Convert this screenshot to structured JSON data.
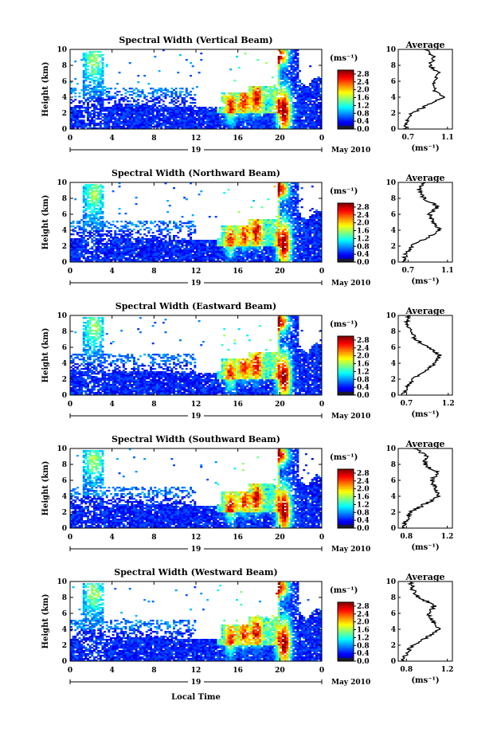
{
  "figure": {
    "xlabel": "Local Time",
    "date_label": "May 2010",
    "day_label": "19",
    "avg_title": "Average",
    "ylabel": "Height (km)",
    "units": "(ms⁻¹)"
  },
  "chart_data": [
    {
      "type": "heatmap",
      "title": "Spectral Width (Vertical Beam)",
      "xlabel": "Local Time",
      "ylabel": "Height (km)",
      "x_ticks": [
        "0",
        "4",
        "8",
        "12",
        "16",
        "20",
        "0"
      ],
      "x_range_hours": [
        0,
        24
      ],
      "y_ticks": [
        "0",
        "2",
        "4",
        "6",
        "8",
        "10"
      ],
      "y_range_km": [
        0,
        10
      ],
      "colorbar": {
        "label": "(ms⁻¹)",
        "ticks": [
          "0.0",
          "0.4",
          "0.8",
          "1.2",
          "1.6",
          "2.0",
          "2.4",
          "2.8"
        ],
        "range": [
          0,
          3.0
        ]
      },
      "average": {
        "title": "Average",
        "xlabel": "(ms⁻¹)",
        "x_ticks": [
          "0.7",
          "1.1"
        ],
        "xlim": [
          0.6,
          1.15
        ],
        "height_km": [
          0,
          1,
          2,
          3,
          4,
          5,
          6,
          7,
          8,
          9,
          10
        ],
        "values": [
          0.66,
          0.7,
          0.74,
          0.9,
          1.05,
          0.96,
          0.95,
          1.02,
          0.92,
          0.97,
          0.88
        ]
      }
    },
    {
      "type": "heatmap",
      "title": "Spectral Width (Northward Beam)",
      "xlabel": "Local Time",
      "ylabel": "Height (km)",
      "x_ticks": [
        "0",
        "4",
        "8",
        "12",
        "16",
        "20",
        "0"
      ],
      "x_range_hours": [
        0,
        24
      ],
      "y_ticks": [
        "0",
        "2",
        "4",
        "6",
        "8",
        "10"
      ],
      "y_range_km": [
        0,
        10
      ],
      "colorbar": {
        "label": "(ms⁻¹)",
        "ticks": [
          "0.0",
          "0.4",
          "0.8",
          "1.2",
          "1.6",
          "2.0",
          "2.4",
          "2.8"
        ],
        "range": [
          0,
          3.0
        ]
      },
      "average": {
        "title": "Average",
        "xlabel": "(ms⁻¹)",
        "x_ticks": [
          "0.7",
          "1.1"
        ],
        "xlim": [
          0.6,
          1.15
        ],
        "height_km": [
          0,
          1,
          2,
          3,
          4,
          5,
          6,
          7,
          8,
          9,
          10
        ],
        "values": [
          0.66,
          0.68,
          0.73,
          0.88,
          1.03,
          0.95,
          0.92,
          1.0,
          0.86,
          0.82,
          0.86
        ]
      }
    },
    {
      "type": "heatmap",
      "title": "Spectral Width (Eastward Beam)",
      "xlabel": "Local Time",
      "ylabel": "Height (km)",
      "x_ticks": [
        "0",
        "4",
        "8",
        "12",
        "16",
        "20",
        "0"
      ],
      "x_range_hours": [
        0,
        24
      ],
      "y_ticks": [
        "0",
        "2",
        "4",
        "6",
        "8",
        "10"
      ],
      "y_range_km": [
        0,
        10
      ],
      "colorbar": {
        "label": "(ms⁻¹)",
        "ticks": [
          "0.0",
          "0.4",
          "0.8",
          "1.2",
          "1.6",
          "2.0",
          "2.4",
          "2.8"
        ],
        "range": [
          0,
          3.0
        ]
      },
      "average": {
        "title": "Average",
        "xlabel": "(ms⁻¹)",
        "x_ticks": [
          "0.7",
          "1.2"
        ],
        "xlim": [
          0.6,
          1.25
        ],
        "height_km": [
          0,
          1,
          2,
          3,
          4,
          5,
          6,
          7,
          8,
          9,
          10
        ],
        "values": [
          0.66,
          0.7,
          0.78,
          0.92,
          1.05,
          1.1,
          0.96,
          0.8,
          0.76,
          0.7,
          0.72
        ]
      }
    },
    {
      "type": "heatmap",
      "title": "Spectral Width (Southward Beam)",
      "xlabel": "Local Time",
      "ylabel": "Height (km)",
      "x_ticks": [
        "0",
        "4",
        "8",
        "12",
        "16",
        "20",
        "0"
      ],
      "x_range_hours": [
        0,
        24
      ],
      "y_ticks": [
        "0",
        "2",
        "4",
        "6",
        "8",
        "10"
      ],
      "y_range_km": [
        0,
        10
      ],
      "colorbar": {
        "label": "(ms⁻¹)",
        "ticks": [
          "0.0",
          "0.4",
          "0.8",
          "1.2",
          "1.6",
          "2.0",
          "2.4",
          "2.8"
        ],
        "range": [
          0,
          3.0
        ]
      },
      "average": {
        "title": "Average",
        "xlabel": "(ms⁻¹)",
        "x_ticks": [
          "0.8",
          "1.2"
        ],
        "xlim": [
          0.72,
          1.25
        ],
        "height_km": [
          0,
          1,
          2,
          3,
          4,
          5,
          6,
          7,
          8,
          9,
          10
        ],
        "values": [
          0.76,
          0.8,
          0.84,
          0.98,
          1.12,
          1.08,
          1.05,
          1.1,
          0.98,
          1.0,
          0.88
        ]
      }
    },
    {
      "type": "heatmap",
      "title": "Spectral Width (Westward Beam)",
      "xlabel": "Local Time",
      "ylabel": "Height (km)",
      "x_ticks": [
        "0",
        "4",
        "8",
        "12",
        "16",
        "20",
        "0"
      ],
      "x_range_hours": [
        0,
        24
      ],
      "y_ticks": [
        "0",
        "2",
        "4",
        "6",
        "8",
        "10"
      ],
      "y_range_km": [
        0,
        10
      ],
      "colorbar": {
        "label": "(ms⁻¹)",
        "ticks": [
          "0.0",
          "0.4",
          "0.8",
          "1.2",
          "1.6",
          "2.0",
          "2.4",
          "2.8"
        ],
        "range": [
          0,
          3.0
        ]
      },
      "average": {
        "title": "Average",
        "xlabel": "(ms⁻¹)",
        "x_ticks": [
          "0.8",
          "1.2"
        ],
        "xlim": [
          0.72,
          1.25
        ],
        "height_km": [
          0,
          1,
          2,
          3,
          4,
          5,
          6,
          7,
          8,
          9,
          10
        ],
        "values": [
          0.76,
          0.8,
          0.86,
          1.0,
          1.12,
          1.06,
          1.02,
          1.08,
          0.92,
          0.86,
          0.84
        ]
      }
    }
  ]
}
